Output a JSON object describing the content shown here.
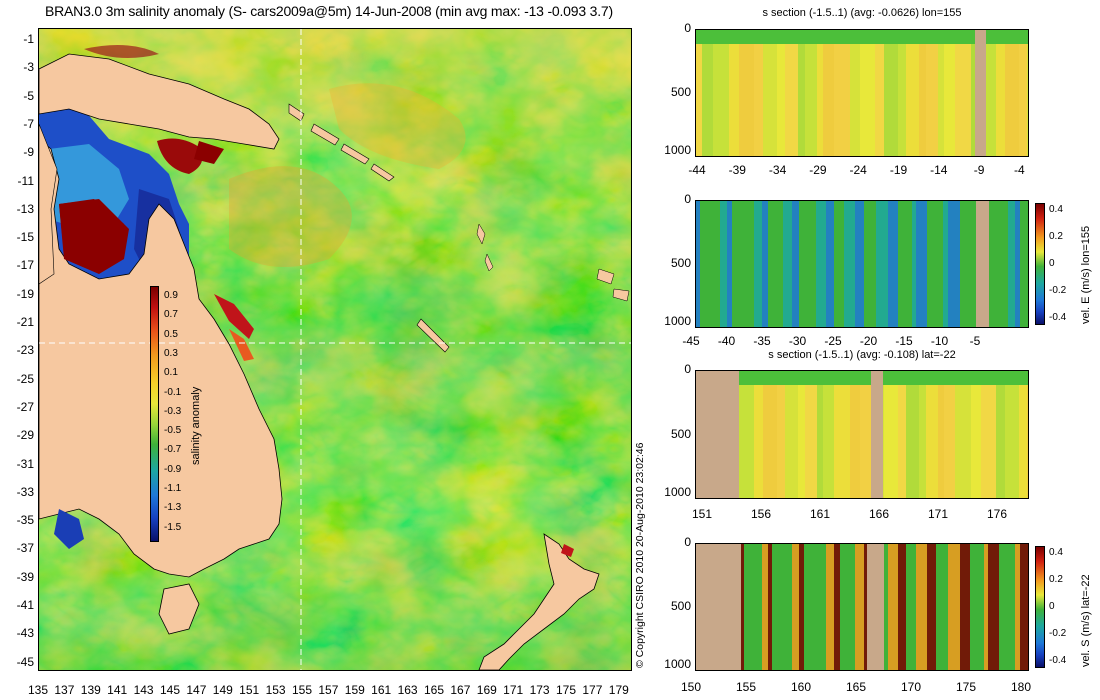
{
  "title": "BRAN3.0 3m salinity anomaly (S- cars2009a@5m) 14-Jun-2008 (min avg max: -13 -0.093 3.7)",
  "colors": {
    "land": "#F6C8A0",
    "section_land": "#C8A88A",
    "ocean_base": "#4CBF3A",
    "gridline": "#FFFFFF"
  },
  "map": {
    "lat_labels": [
      "-1",
      "-3",
      "-5",
      "-7",
      "-9",
      "-11",
      "-13",
      "-15",
      "-17",
      "-19",
      "-21",
      "-23",
      "-25",
      "-27",
      "-29",
      "-31",
      "-33",
      "-35",
      "-37",
      "-39",
      "-41",
      "-43",
      "-45"
    ],
    "lon_labels": [
      "135",
      "137",
      "139",
      "141",
      "143",
      "145",
      "147",
      "149",
      "151",
      "153",
      "155",
      "157",
      "159",
      "161",
      "163",
      "165",
      "167",
      "169",
      "171",
      "173",
      "175",
      "177",
      "179"
    ],
    "crosshair": {
      "lon": 155,
      "lat": -22
    },
    "colorbar": {
      "title": "salinity anomaly",
      "ticks": [
        "0.9",
        "0.7",
        "0.5",
        "0.3",
        "0.1",
        "-0.1",
        "-0.3",
        "-0.5",
        "-0.7",
        "-0.9",
        "-1.1",
        "-1.3",
        "-1.5"
      ]
    }
  },
  "copyright": "© Copyright CSIRO 2010   20-Aug-2010 23:02:46",
  "sections": [
    {
      "title": "s section (-1.5..1) (avg: -0.0626) lon=155",
      "y_ticks": [
        "0",
        "500",
        "1000"
      ],
      "x_ticks": [
        "-44",
        "-39",
        "-34",
        "-29",
        "-24",
        "-19",
        "-14",
        "-9",
        "-4"
      ],
      "colorbar": null
    },
    {
      "title": "",
      "y_ticks": [
        "0",
        "500",
        "1000"
      ],
      "x_ticks": [
        "-45",
        "-40",
        "-35",
        "-30",
        "-25",
        "-20",
        "-15",
        "-10",
        "-5"
      ],
      "colorbar": {
        "label": "vel. E (m/s) lon=155",
        "ticks": [
          "0.4",
          "0.2",
          "0",
          "-0.2",
          "-0.4"
        ]
      }
    },
    {
      "title": "s section (-1.5..1) (avg: -0.108) lat=-22",
      "y_ticks": [
        "0",
        "500",
        "1000"
      ],
      "x_ticks": [
        "151",
        "156",
        "161",
        "166",
        "171",
        "176"
      ],
      "colorbar": null
    },
    {
      "title": "",
      "y_ticks": [
        "0",
        "500",
        "1000"
      ],
      "x_ticks": [
        "150",
        "155",
        "160",
        "165",
        "170",
        "175",
        "180"
      ],
      "colorbar": {
        "label": "vel. S (m/s) lat=-22",
        "ticks": [
          "0.4",
          "0.2",
          "0",
          "-0.2",
          "-0.4"
        ]
      }
    }
  ]
}
